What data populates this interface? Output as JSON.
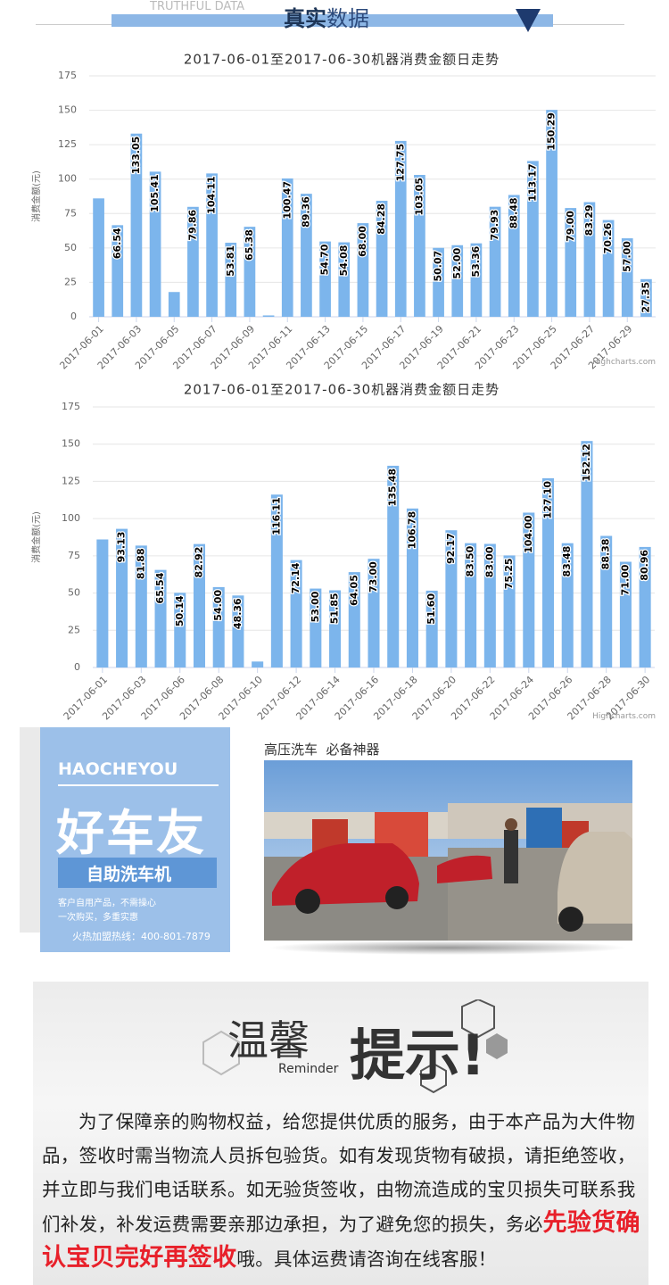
{
  "header": {
    "subtitle_en": "TRUTHFUL DATA",
    "title_strong": "真实",
    "title_rest": "数据"
  },
  "chart_data": [
    {
      "type": "bar",
      "title": "2017-06-01至2017-06-30机器消费金额日走势",
      "y_label": "消费金额(元)",
      "credit": "Highcharts.com",
      "color": "#7cb5ec",
      "grid": true,
      "categories": [
        "2017-06-01",
        null,
        "2017-06-03",
        null,
        "2017-06-05",
        null,
        "2017-06-07",
        null,
        "2017-06-09",
        null,
        "2017-06-11",
        null,
        "2017-06-13",
        null,
        "2017-06-15",
        null,
        "2017-06-17",
        null,
        "2017-06-19",
        null,
        "2017-06-21",
        null,
        "2017-06-23",
        null,
        "2017-06-25",
        null,
        "2017-06-27",
        null,
        "2017-06-29",
        null
      ],
      "values": [
        86,
        66.54,
        133.05,
        105.41,
        18,
        79.86,
        104.11,
        53.81,
        65.38,
        1,
        100.47,
        89.36,
        54.7,
        54.08,
        68,
        84.28,
        127.75,
        103.05,
        50.07,
        52,
        53.36,
        79.93,
        88.48,
        113.17,
        150.29,
        79,
        83.29,
        70.26,
        57,
        27.35
      ],
      "value_labels": [
        null,
        "66.54",
        "133.05",
        "105.41",
        null,
        "79.86",
        "104.11",
        "53.81",
        "65.38",
        null,
        "100.47",
        "89.36",
        "54.70",
        "54.08",
        "68.00",
        "84.28",
        "127.75",
        "103.05",
        "50.07",
        "52.00",
        "53.36",
        "79.93",
        "88.48",
        "113.17",
        "150.29",
        "79.00",
        "83.29",
        "70.26",
        "57.00",
        "27.35"
      ],
      "ylim": [
        0,
        175
      ],
      "yticks": [
        0,
        25,
        50,
        75,
        100,
        125,
        150,
        175
      ]
    },
    {
      "type": "bar",
      "title": "2017-06-01至2017-06-30机器消费金额日走势",
      "y_label": "消费金额(元)",
      "credit": "Highcharts.com",
      "color": "#7cb5ec",
      "grid": true,
      "categories": [
        "2017-06-01",
        null,
        "2017-06-03",
        null,
        "2017-06-06",
        null,
        "2017-06-08",
        null,
        "2017-06-10",
        null,
        "2017-06-12",
        null,
        "2017-06-14",
        null,
        "2017-06-16",
        null,
        "2017-06-18",
        null,
        "2017-06-20",
        null,
        "2017-06-22",
        null,
        "2017-06-24",
        null,
        "2017-06-26",
        null,
        "2017-06-28",
        null,
        "2017-06-30"
      ],
      "values": [
        86,
        93.13,
        81.88,
        65.54,
        50.14,
        82.92,
        54,
        48.36,
        4,
        116.11,
        72.14,
        53,
        51.85,
        64.05,
        73,
        135.48,
        106.78,
        51.6,
        92.17,
        83.5,
        83,
        75.25,
        104,
        127.1,
        83.48,
        152.12,
        88.38,
        71,
        80.96
      ],
      "value_labels": [
        null,
        "93.13",
        "81.88",
        "65.54",
        "50.14",
        "82.92",
        "54.00",
        "48.36",
        null,
        "116.11",
        "72.14",
        "53.00",
        "51.85",
        "64.05",
        "73.00",
        "135.48",
        "106.78",
        "51.60",
        "92.17",
        "83.50",
        "83.00",
        "75.25",
        "104.00",
        "127.10",
        "83.48",
        "152.12",
        "88.38",
        "71.00",
        "80.96"
      ],
      "ylim": [
        0,
        175
      ],
      "yticks": [
        0,
        25,
        50,
        75,
        100,
        125,
        150,
        175
      ]
    }
  ],
  "ad": {
    "brand_en": "HAOCHEYOU",
    "brand": "好车友",
    "product": "自助洗车机",
    "slogan_1": "客户自用产品，不需操心",
    "slogan_2": "一次购买，多重实惠",
    "hotline": "火热加盟热线：400-801-7879",
    "photo_caption": "高压洗车  必备神器"
  },
  "reminder": {
    "title_1": "温馨",
    "title_en": "Reminder",
    "title_2": "提示!",
    "text_1": "为了保障亲的购物权益，给您提供优质的服务，由于本产品为大件物品，签收时需当物流人员拆包验货。如有发现货物有破损，请拒绝签收，并立即与我们电话联系。如无验货签收，由物流造成的宝贝损失可联系我们补发，补发运费需要亲那边承担，为了避免您的损失，务必",
    "highlight": "先验货确认宝贝完好再签收",
    "text_2": "哦。具体运费请咨询在线客服！"
  }
}
